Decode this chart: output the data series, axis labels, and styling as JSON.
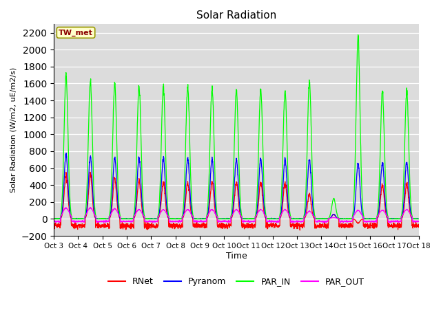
{
  "title": "Solar Radiation",
  "ylabel": "Solar Radiation (W/m2, uE/m2/s)",
  "xlabel": "Time",
  "station_label": "TW_met",
  "ylim": [
    -200,
    2300
  ],
  "yticks": [
    -200,
    0,
    200,
    400,
    600,
    800,
    1000,
    1200,
    1400,
    1600,
    1800,
    2000,
    2200
  ],
  "bg_color": "#dcdcdc",
  "colors": {
    "RNet": "#ff0000",
    "Pyranom": "#0000ff",
    "PAR_IN": "#00ff00",
    "PAR_OUT": "#ff00ff"
  },
  "n_days": 15,
  "start_day": 3,
  "peaks": {
    "PAR_IN": [
      1700,
      1625,
      1600,
      1575,
      1565,
      1565,
      1540,
      1530,
      1520,
      1500,
      1620,
      240,
      2150,
      1505,
      1505
    ],
    "Pyranom": [
      760,
      735,
      725,
      720,
      720,
      720,
      710,
      700,
      710,
      700,
      710,
      55,
      660,
      660,
      670
    ],
    "RNet": [
      520,
      510,
      480,
      450,
      430,
      430,
      430,
      430,
      430,
      420,
      290,
      55,
      -50,
      405,
      410
    ],
    "PAR_OUT": [
      130,
      130,
      120,
      110,
      110,
      110,
      110,
      110,
      110,
      110,
      90,
      15,
      100,
      105,
      110
    ]
  },
  "night_RNet": -80,
  "night_PAR_OUT": -30
}
